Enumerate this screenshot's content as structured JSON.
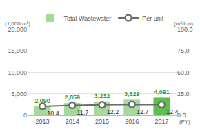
{
  "chart_data": {
    "type": "bar",
    "categories": [
      "2013",
      "2014",
      "2015",
      "2016",
      "2017"
    ],
    "xlabel": "(FY)",
    "ylabel": "(1,000 m³)",
    "y2label": "(m³/ton)",
    "series": [
      {
        "name": "Total Wastewater",
        "type": "bar",
        "colors": [
          "#a8d99c",
          "#a8d99c",
          "#a8d99c",
          "#a8d99c",
          "#5fbf4e"
        ],
        "values": [
          2090,
          2859,
          3232,
          3629,
          4091
        ],
        "value_labels": [
          "2,090",
          "2,859",
          "3,232",
          "3,629",
          "4,091"
        ]
      },
      {
        "name": "Per unit",
        "type": "line",
        "axis": "y2",
        "color": "#6b6b6b",
        "marker": "circle",
        "values": [
          10.4,
          11.7,
          12.2,
          12.7,
          12.4
        ]
      }
    ],
    "ylim": [
      0,
      20000
    ],
    "yticks": [
      0,
      {
        "value": 5000,
        "label": "5,000"
      },
      {
        "value": 10000,
        "label": "10,000"
      },
      {
        "value": 15000,
        "label": "15,000"
      },
      {
        "value": 20000,
        "label": "20,000"
      }
    ],
    "y2lim": [
      0,
      100
    ],
    "y2ticks": [
      {
        "value": 0,
        "label": "0.0"
      },
      {
        "value": 25,
        "label": "25.0"
      },
      {
        "value": 50,
        "label": "50.0"
      },
      {
        "value": 75,
        "label": "75.0"
      },
      {
        "value": 100,
        "label": "100.0"
      }
    ],
    "grid": true,
    "data_labels": true,
    "legend": "top"
  }
}
